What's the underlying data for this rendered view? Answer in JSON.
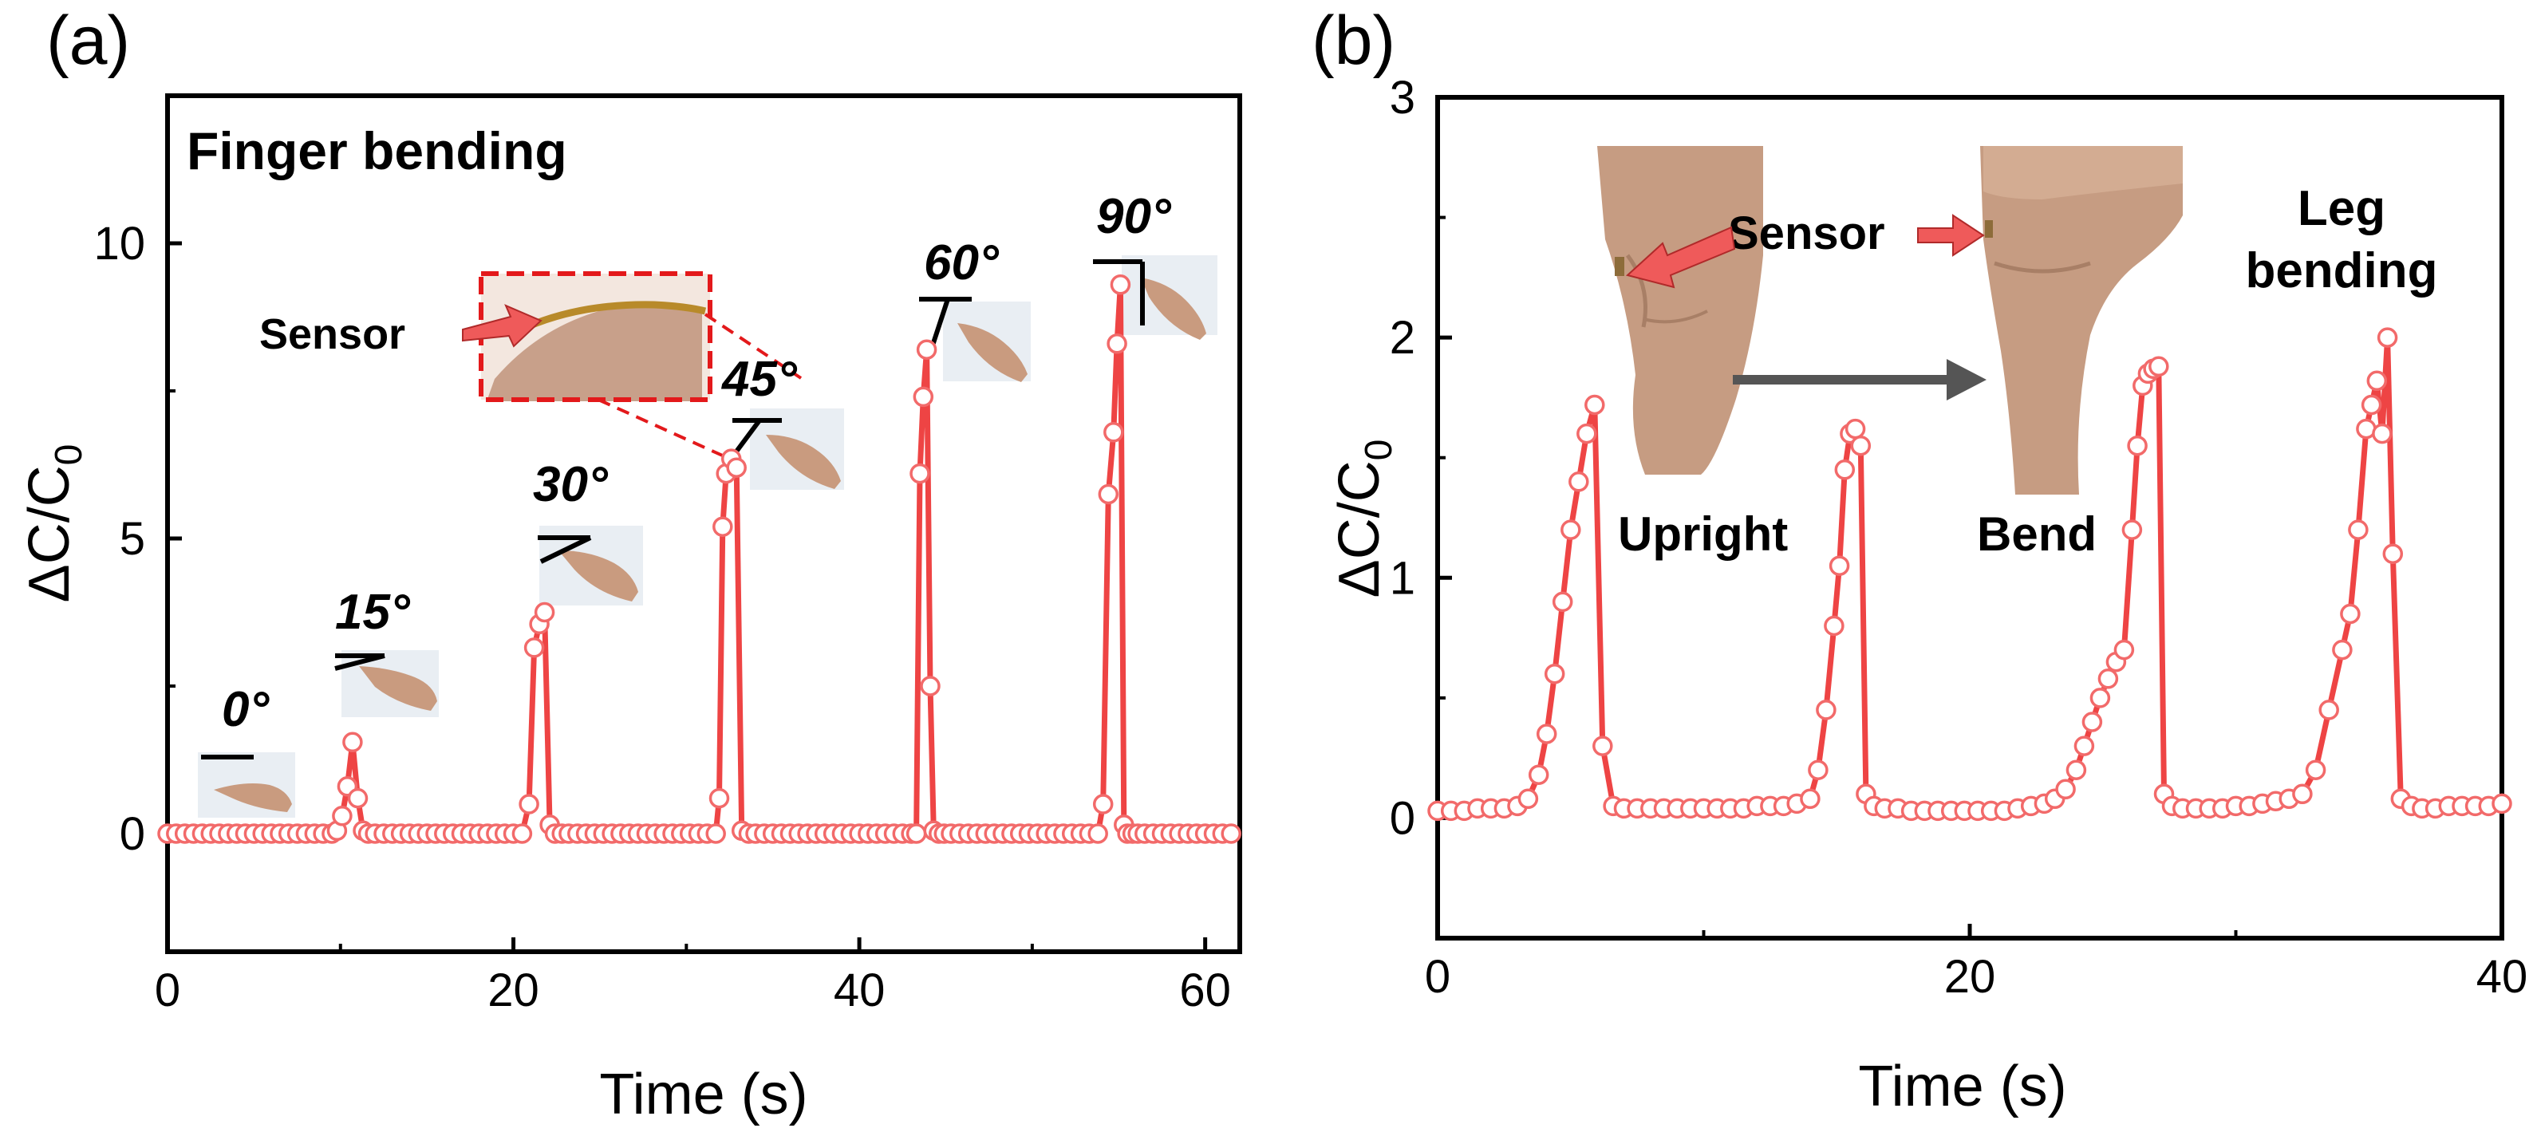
{
  "colors": {
    "series": "#ee4444",
    "marker_stroke": "#f26a6a",
    "marker_fill": "#ffffff",
    "arrow_red": "#ef5a5a",
    "arrow_gray": "#555555"
  },
  "chart_data": [
    {
      "type": "line",
      "panel_label": "(a)",
      "xlabel": "Time (s)",
      "ylabel": "ΔC/C",
      "ylabel_sub": "0",
      "xlim": [
        0,
        62
      ],
      "ylim": [
        -2,
        12.5
      ],
      "xticks": [
        0,
        20,
        40,
        60
      ],
      "yticks": [
        0,
        5,
        10
      ],
      "title": "Finger bending",
      "sensor_label": "Sensor",
      "angle_labels": [
        "0°",
        "15°",
        "30°",
        "45°",
        "60°",
        "90°"
      ],
      "x": [
        0,
        0.5,
        1,
        1.5,
        2,
        2.5,
        3,
        3.5,
        4,
        4.5,
        5,
        5.5,
        6,
        6.5,
        7,
        7.5,
        8,
        8.5,
        9,
        9.5,
        9.8,
        10.1,
        10.4,
        10.7,
        11,
        11.3,
        11.6,
        12,
        12.5,
        13,
        13.5,
        14,
        14.5,
        15,
        15.5,
        16,
        16.5,
        17,
        17.5,
        18,
        18.5,
        19,
        19.5,
        20,
        20.5,
        20.9,
        21.2,
        21.5,
        21.8,
        22.1,
        22.4,
        22.8,
        23.2,
        23.7,
        24.2,
        24.7,
        25.2,
        25.7,
        26.2,
        26.7,
        27.2,
        27.7,
        28.2,
        28.7,
        29.2,
        29.7,
        30.2,
        30.7,
        31.2,
        31.7,
        31.9,
        32.1,
        32.3,
        32.6,
        32.9,
        33.2,
        33.6,
        34,
        34.5,
        35,
        35.5,
        36,
        36.5,
        37,
        37.5,
        38,
        38.5,
        39,
        39.5,
        40,
        40.5,
        41,
        41.5,
        42,
        42.5,
        43,
        43.3,
        43.5,
        43.7,
        43.9,
        44.1,
        44.3,
        44.6,
        44.9,
        45.3,
        45.8,
        46.3,
        46.8,
        47.3,
        47.8,
        48.3,
        48.8,
        49.3,
        49.8,
        50.3,
        50.8,
        51.3,
        51.8,
        52.3,
        52.8,
        53.3,
        53.8,
        54.1,
        54.4,
        54.7,
        54.9,
        55.1,
        55.3,
        55.5,
        55.8,
        56.1,
        56.5,
        57,
        57.5,
        58,
        58.5,
        59,
        59.5,
        60,
        60.5,
        61,
        61.5
      ],
      "values": [
        0,
        0,
        0,
        0,
        0,
        0,
        0,
        0,
        0,
        0,
        0,
        0,
        0,
        0,
        0,
        0,
        0,
        0,
        0,
        0,
        0.05,
        0.3,
        0.8,
        1.55,
        0.6,
        0.05,
        0,
        0,
        0,
        0,
        0,
        0,
        0,
        0,
        0,
        0,
        0,
        0,
        0,
        0,
        0,
        0,
        0,
        0,
        0,
        0.5,
        3.15,
        3.55,
        3.75,
        0.15,
        0,
        0,
        0,
        0,
        0,
        0,
        0,
        0,
        0,
        0,
        0,
        0,
        0,
        0,
        0,
        0,
        0,
        0,
        0,
        0,
        0.6,
        5.2,
        6.1,
        6.35,
        6.2,
        0.05,
        0,
        0,
        0,
        0,
        0,
        0,
        0,
        0,
        0,
        0,
        0,
        0,
        0,
        0,
        0,
        0,
        0,
        0,
        0,
        0,
        0,
        6.1,
        7.4,
        8.2,
        2.5,
        0.05,
        0,
        0,
        0,
        0,
        0,
        0,
        0,
        0,
        0,
        0,
        0,
        0,
        0,
        0,
        0,
        0,
        0,
        0,
        0,
        0,
        0.5,
        5.75,
        6.8,
        8.3,
        9.3,
        0.15,
        0,
        0,
        0,
        0,
        0,
        0,
        0,
        0,
        0,
        0,
        0,
        0,
        0,
        0
      ]
    },
    {
      "type": "line",
      "panel_label": "(b)",
      "xlabel": "Time (s)",
      "ylabel": "ΔC/C",
      "ylabel_sub": "0",
      "xlim": [
        0,
        40
      ],
      "ylim": [
        -0.5,
        3
      ],
      "xticks": [
        0,
        20,
        40
      ],
      "yticks": [
        0,
        1,
        2,
        3
      ],
      "title_lines": [
        "Leg",
        "bending"
      ],
      "sensor_label": "Sensor",
      "pose_labels": [
        "Upright",
        "Bend"
      ],
      "x": [
        0,
        0.5,
        1,
        1.5,
        2,
        2.5,
        3,
        3.4,
        3.8,
        4.1,
        4.4,
        4.7,
        5,
        5.3,
        5.6,
        5.9,
        6.2,
        6.6,
        7,
        7.5,
        8,
        8.5,
        9,
        9.5,
        10,
        10.5,
        11,
        11.5,
        12,
        12.5,
        13,
        13.5,
        14,
        14.3,
        14.6,
        14.9,
        15.1,
        15.3,
        15.5,
        15.7,
        15.9,
        16.1,
        16.4,
        16.8,
        17.3,
        17.8,
        18.3,
        18.8,
        19.3,
        19.8,
        20.3,
        20.8,
        21.3,
        21.8,
        22.3,
        22.8,
        23.2,
        23.6,
        24,
        24.3,
        24.6,
        24.9,
        25.2,
        25.5,
        25.8,
        26.1,
        26.3,
        26.5,
        26.7,
        26.9,
        27.1,
        27.3,
        27.6,
        28,
        28.5,
        29,
        29.5,
        30,
        30.5,
        31,
        31.5,
        32,
        32.5,
        33,
        33.5,
        34,
        34.3,
        34.6,
        34.9,
        35.1,
        35.3,
        35.5,
        35.7,
        35.9,
        36.2,
        36.6,
        37,
        37.5,
        38,
        38.5,
        39,
        39.5,
        40
      ],
      "values": [
        0.03,
        0.03,
        0.03,
        0.04,
        0.04,
        0.04,
        0.05,
        0.08,
        0.18,
        0.35,
        0.6,
        0.9,
        1.2,
        1.4,
        1.6,
        1.72,
        0.3,
        0.05,
        0.04,
        0.04,
        0.04,
        0.04,
        0.04,
        0.04,
        0.04,
        0.04,
        0.04,
        0.04,
        0.05,
        0.05,
        0.05,
        0.06,
        0.08,
        0.2,
        0.45,
        0.8,
        1.05,
        1.45,
        1.6,
        1.62,
        1.55,
        0.1,
        0.05,
        0.04,
        0.04,
        0.03,
        0.03,
        0.03,
        0.03,
        0.03,
        0.03,
        0.03,
        0.03,
        0.04,
        0.05,
        0.06,
        0.08,
        0.12,
        0.2,
        0.3,
        0.4,
        0.5,
        0.58,
        0.65,
        0.7,
        1.2,
        1.55,
        1.8,
        1.85,
        1.87,
        1.88,
        0.1,
        0.05,
        0.04,
        0.04,
        0.04,
        0.04,
        0.05,
        0.05,
        0.06,
        0.07,
        0.08,
        0.1,
        0.2,
        0.45,
        0.7,
        0.85,
        1.2,
        1.62,
        1.72,
        1.82,
        1.6,
        2.0,
        1.1,
        0.08,
        0.05,
        0.04,
        0.04,
        0.05,
        0.05,
        0.05,
        0.05,
        0.06
      ]
    }
  ]
}
